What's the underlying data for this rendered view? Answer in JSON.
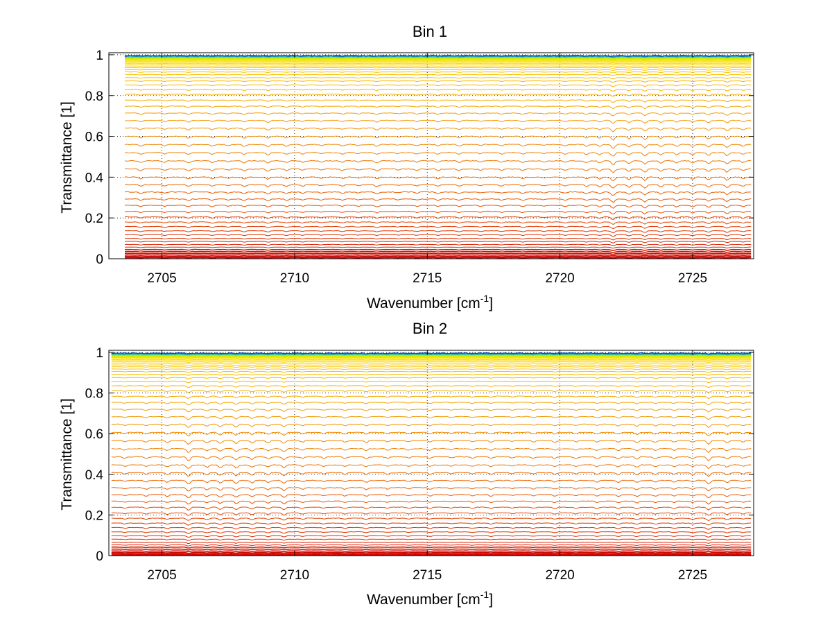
{
  "chart_data": [
    {
      "type": "line",
      "title": "Bin 1",
      "xlabel": "Wavenumber [cm",
      "xlabel_sup": "-1",
      "xlabel_end": "]",
      "ylabel": "Transmittance [1]",
      "xlim": [
        2703.0,
        2727.3
      ],
      "ylim": [
        0,
        1.01
      ],
      "data_x_range": [
        2703.6,
        2727.2
      ],
      "grid": true,
      "xticks": [
        2705,
        2710,
        2715,
        2720,
        2725
      ],
      "yticks": [
        0,
        0.2,
        0.4,
        0.6,
        0.8,
        1
      ],
      "ytick_labels": [
        "0",
        "0.2",
        "0.4",
        "0.6",
        "0.8",
        "1"
      ],
      "series_count": 60,
      "colormap": [
        "#cc0000",
        "#e84a00",
        "#f5a800",
        "#ffe000",
        "#c8f000",
        "#40c8b0",
        "#0050c0"
      ],
      "curve_baselines": [
        0.005,
        0.011,
        0.018,
        0.026,
        0.035,
        0.045,
        0.057,
        0.07,
        0.085,
        0.1,
        0.118,
        0.137,
        0.158,
        0.18,
        0.205,
        0.232,
        0.262,
        0.293,
        0.327,
        0.363,
        0.4,
        0.44,
        0.48,
        0.52,
        0.56,
        0.6,
        0.64,
        0.678,
        0.714,
        0.748,
        0.778,
        0.806,
        0.83,
        0.852,
        0.872,
        0.888,
        0.903,
        0.916,
        0.927,
        0.937,
        0.945,
        0.952,
        0.958,
        0.963,
        0.968,
        0.972,
        0.975,
        0.978,
        0.981,
        0.983,
        0.985,
        0.987,
        0.989,
        0.99,
        0.991,
        0.992,
        0.993,
        0.994,
        0.995,
        0.996
      ],
      "absorption_lines": [
        {
          "x": 2704.2,
          "depth": 0.6
        },
        {
          "x": 2705.1,
          "depth": 0.5
        },
        {
          "x": 2706.0,
          "depth": 0.7
        },
        {
          "x": 2706.9,
          "depth": 0.6
        },
        {
          "x": 2707.5,
          "depth": 0.4
        },
        {
          "x": 2708.1,
          "depth": 0.7
        },
        {
          "x": 2709.0,
          "depth": 0.8
        },
        {
          "x": 2709.7,
          "depth": 0.6
        },
        {
          "x": 2710.3,
          "depth": 0.5
        },
        {
          "x": 2711.0,
          "depth": 0.4
        },
        {
          "x": 2711.8,
          "depth": 0.5
        },
        {
          "x": 2712.4,
          "depth": 0.4
        },
        {
          "x": 2713.1,
          "depth": 0.7
        },
        {
          "x": 2713.9,
          "depth": 0.3
        },
        {
          "x": 2714.6,
          "depth": 0.5
        },
        {
          "x": 2715.4,
          "depth": 0.6
        },
        {
          "x": 2716.2,
          "depth": 0.6
        },
        {
          "x": 2717.0,
          "depth": 0.4
        },
        {
          "x": 2717.8,
          "depth": 0.5
        },
        {
          "x": 2718.6,
          "depth": 0.6
        },
        {
          "x": 2719.4,
          "depth": 0.4
        },
        {
          "x": 2720.2,
          "depth": 0.5
        },
        {
          "x": 2721.0,
          "depth": 0.6
        },
        {
          "x": 2721.5,
          "depth": 0.7
        },
        {
          "x": 2722.0,
          "depth": 1.4
        },
        {
          "x": 2722.6,
          "depth": 0.9
        },
        {
          "x": 2723.2,
          "depth": 1.2
        },
        {
          "x": 2723.8,
          "depth": 0.8
        },
        {
          "x": 2724.4,
          "depth": 0.7
        },
        {
          "x": 2725.0,
          "depth": 0.7
        },
        {
          "x": 2725.6,
          "depth": 0.9
        },
        {
          "x": 2726.3,
          "depth": 1.1
        },
        {
          "x": 2726.9,
          "depth": 0.6
        }
      ]
    },
    {
      "type": "line",
      "title": "Bin 2",
      "xlabel": "Wavenumber [cm",
      "xlabel_sup": "-1",
      "xlabel_end": "]",
      "ylabel": "Transmittance [1]",
      "xlim": [
        2703.0,
        2727.3
      ],
      "ylim": [
        0,
        1.01
      ],
      "data_x_range": [
        2703.1,
        2727.2
      ],
      "grid": true,
      "xticks": [
        2705,
        2710,
        2715,
        2720,
        2725
      ],
      "yticks": [
        0,
        0.2,
        0.4,
        0.6,
        0.8,
        1
      ],
      "ytick_labels": [
        "0",
        "0.2",
        "0.4",
        "0.6",
        "0.8",
        "1"
      ],
      "series_count": 60,
      "colormap": [
        "#cc0000",
        "#e84a00",
        "#f5a800",
        "#ffe000",
        "#c8f000",
        "#40c8b0",
        "#0050c0"
      ],
      "curve_baselines": [
        0.004,
        0.009,
        0.015,
        0.023,
        0.032,
        0.042,
        0.053,
        0.066,
        0.081,
        0.098,
        0.117,
        0.138,
        0.16,
        0.184,
        0.21,
        0.238,
        0.268,
        0.3,
        0.334,
        0.37,
        0.408,
        0.446,
        0.486,
        0.526,
        0.566,
        0.606,
        0.646,
        0.684,
        0.72,
        0.754,
        0.784,
        0.812,
        0.836,
        0.858,
        0.876,
        0.892,
        0.906,
        0.918,
        0.929,
        0.938,
        0.946,
        0.953,
        0.959,
        0.964,
        0.969,
        0.973,
        0.976,
        0.979,
        0.981,
        0.983,
        0.985,
        0.987,
        0.989,
        0.99,
        0.991,
        0.992,
        0.993,
        0.994,
        0.995,
        0.996
      ],
      "absorption_lines": [
        {
          "x": 2703.6,
          "depth": 0.5
        },
        {
          "x": 2704.4,
          "depth": 0.6
        },
        {
          "x": 2705.2,
          "depth": 0.7
        },
        {
          "x": 2706.0,
          "depth": 1.4
        },
        {
          "x": 2706.7,
          "depth": 0.8
        },
        {
          "x": 2707.2,
          "depth": 1.0
        },
        {
          "x": 2707.8,
          "depth": 1.1
        },
        {
          "x": 2708.4,
          "depth": 0.9
        },
        {
          "x": 2709.0,
          "depth": 0.8
        },
        {
          "x": 2709.6,
          "depth": 1.1
        },
        {
          "x": 2710.3,
          "depth": 0.6
        },
        {
          "x": 2711.1,
          "depth": 0.5
        },
        {
          "x": 2711.9,
          "depth": 0.6
        },
        {
          "x": 2712.7,
          "depth": 0.7
        },
        {
          "x": 2713.5,
          "depth": 0.5
        },
        {
          "x": 2714.3,
          "depth": 0.5
        },
        {
          "x": 2715.1,
          "depth": 0.6
        },
        {
          "x": 2715.9,
          "depth": 0.4
        },
        {
          "x": 2716.7,
          "depth": 0.5
        },
        {
          "x": 2717.4,
          "depth": 0.6
        },
        {
          "x": 2718.2,
          "depth": 0.4
        },
        {
          "x": 2719.0,
          "depth": 0.5
        },
        {
          "x": 2719.8,
          "depth": 0.6
        },
        {
          "x": 2720.6,
          "depth": 0.5
        },
        {
          "x": 2721.4,
          "depth": 0.6
        },
        {
          "x": 2722.2,
          "depth": 0.7
        },
        {
          "x": 2722.9,
          "depth": 0.8
        },
        {
          "x": 2723.6,
          "depth": 0.7
        },
        {
          "x": 2724.3,
          "depth": 0.6
        },
        {
          "x": 2725.0,
          "depth": 0.6
        },
        {
          "x": 2725.6,
          "depth": 1.3
        },
        {
          "x": 2726.3,
          "depth": 0.8
        },
        {
          "x": 2726.9,
          "depth": 0.5
        }
      ]
    }
  ]
}
